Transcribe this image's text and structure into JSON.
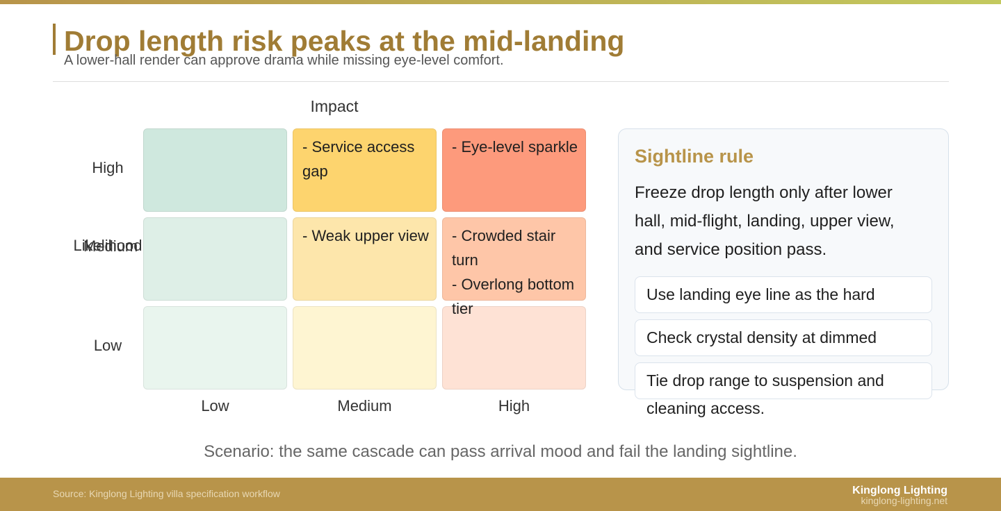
{
  "title": "Drop length risk peaks at the mid-landing",
  "subtitle": "A lower-hall render can approve drama while missing eye-level comfort.",
  "axes": {
    "x_title": "Impact",
    "y_title": "Likelihood",
    "x_levels": [
      "Low",
      "Medium",
      "High"
    ],
    "y_levels": [
      "High",
      "Medium",
      "Low"
    ]
  },
  "matrix": {
    "rows": [
      {
        "likelihood": "High",
        "cells": [
          {
            "impact": "Low",
            "color": "#cfe8de",
            "items": []
          },
          {
            "impact": "Medium",
            "color": "#fdd46e",
            "items": [
              "- Service access gap"
            ]
          },
          {
            "impact": "High",
            "color": "#fd9a7c",
            "items": [
              "- Eye-level sparkle"
            ]
          }
        ]
      },
      {
        "likelihood": "Medium",
        "cells": [
          {
            "impact": "Low",
            "color": "#deefe7",
            "items": []
          },
          {
            "impact": "Medium",
            "color": "#fde6ab",
            "items": [
              "- Weak upper view"
            ]
          },
          {
            "impact": "High",
            "color": "#fec6a8",
            "items": [
              "- Crowded stair turn",
              "- Overlong bottom tier"
            ]
          }
        ]
      },
      {
        "likelihood": "Low",
        "cells": [
          {
            "impact": "Low",
            "color": "#e9f5ee",
            "items": []
          },
          {
            "impact": "Medium",
            "color": "#fef5d2",
            "items": []
          },
          {
            "impact": "High",
            "color": "#fee2d5",
            "items": []
          }
        ]
      }
    ]
  },
  "panel": {
    "title": "Sightline rule",
    "body": "Freeze drop length only after lower hall, mid-flight, landing, upper view, and service position pass.",
    "notes": [
      "Use landing eye line as the hard review gate.",
      "Check crystal density at dimmed scenes.",
      "Tie drop range to suspension and cleaning access."
    ]
  },
  "scenario": "Scenario: the same cascade can pass arrival mood and fail the landing sightline.",
  "footer": {
    "source": "Source: Kinglong Lighting villa specification workflow",
    "brand": "Kinglong Lighting",
    "site": "kinglong-lighting.net"
  }
}
